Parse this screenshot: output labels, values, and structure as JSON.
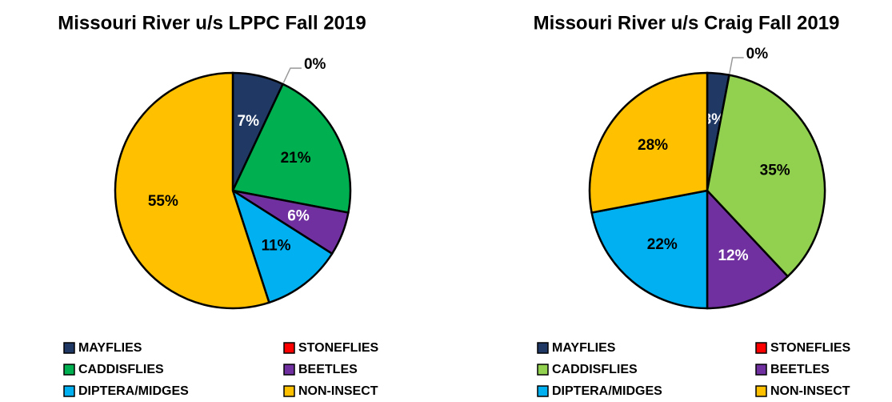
{
  "chart_data": [
    {
      "type": "pie",
      "title": "Missouri River u/s LPPC Fall 2019",
      "categories": [
        "MAYFLIES",
        "STONEFLIES",
        "CADDISFLIES",
        "BEETLES",
        "DIPTERA/MIDGES",
        "NON-INSECT"
      ],
      "values": [
        7,
        0,
        21,
        6,
        11,
        55
      ],
      "value_labels": [
        "7%",
        "0%",
        "21%",
        "6%",
        "11%",
        "55%"
      ],
      "colors": [
        "#1f3864",
        "#ff0000",
        "#00b050",
        "#7030a0",
        "#00b0f0",
        "#ffc000"
      ],
      "legend": "bottom"
    },
    {
      "type": "pie",
      "title": "Missouri River u/s Craig Fall 2019",
      "categories": [
        "MAYFLIES",
        "STONEFLIES",
        "CADDISFLIES",
        "BEETLES",
        "DIPTERA/MIDGES",
        "NON-INSECT"
      ],
      "values": [
        3,
        0,
        35,
        12,
        22,
        28
      ],
      "value_labels": [
        "3%",
        "0%",
        "35%",
        "12%",
        "22%",
        "28%"
      ],
      "colors": [
        "#1f3864",
        "#ff0000",
        "#92d050",
        "#7030a0",
        "#00b0f0",
        "#ffc000"
      ],
      "legend": "bottom"
    }
  ]
}
